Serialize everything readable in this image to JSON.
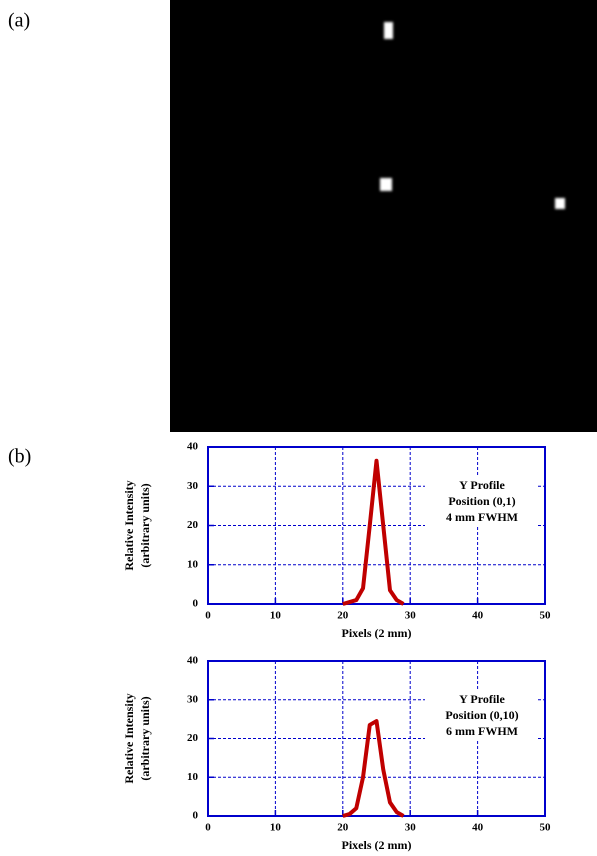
{
  "panel_labels": [
    "(a)",
    "(b)"
  ],
  "chart_data": [
    {
      "type": "line",
      "xlabel": "Pixels (2 mm)",
      "ylabel": [
        "Relative Intensity",
        "(arbitrary units)"
      ],
      "annotation": [
        "Y Profile",
        "Position (0,1)",
        "4 mm FWHM"
      ],
      "x": [
        20,
        21,
        22,
        23,
        24,
        25,
        26,
        27,
        28,
        29
      ],
      "series": [
        {
          "color": "#c00000",
          "values": [
            0,
            0.5,
            1,
            4,
            20,
            36.5,
            20,
            3.5,
            1,
            0
          ]
        }
      ],
      "xlim": [
        0,
        50
      ],
      "xticks": [
        0,
        10,
        20,
        30,
        40,
        50
      ],
      "ylim": [
        0,
        40
      ],
      "yticks": [
        0,
        10,
        20,
        30,
        40
      ],
      "grid": true,
      "frame_color": "#0000cc"
    },
    {
      "type": "line",
      "xlabel": "Pixels (2 mm)",
      "ylabel": [
        "Relative Intensity",
        "(arbitrary units)"
      ],
      "annotation": [
        "Y Profile",
        "Position (0,10)",
        "6 mm FWHM"
      ],
      "x": [
        20,
        21,
        22,
        23,
        24,
        25,
        26,
        27,
        28,
        29
      ],
      "series": [
        {
          "color": "#c00000",
          "values": [
            0,
            0.5,
            2,
            10,
            23.5,
            24.5,
            12,
            3.5,
            1,
            0
          ]
        }
      ],
      "xlim": [
        0,
        50
      ],
      "xticks": [
        0,
        10,
        20,
        30,
        40,
        50
      ],
      "ylim": [
        0,
        40
      ],
      "yticks": [
        0,
        10,
        20,
        30,
        40
      ],
      "grid": true,
      "frame_color": "#0000cc"
    }
  ]
}
